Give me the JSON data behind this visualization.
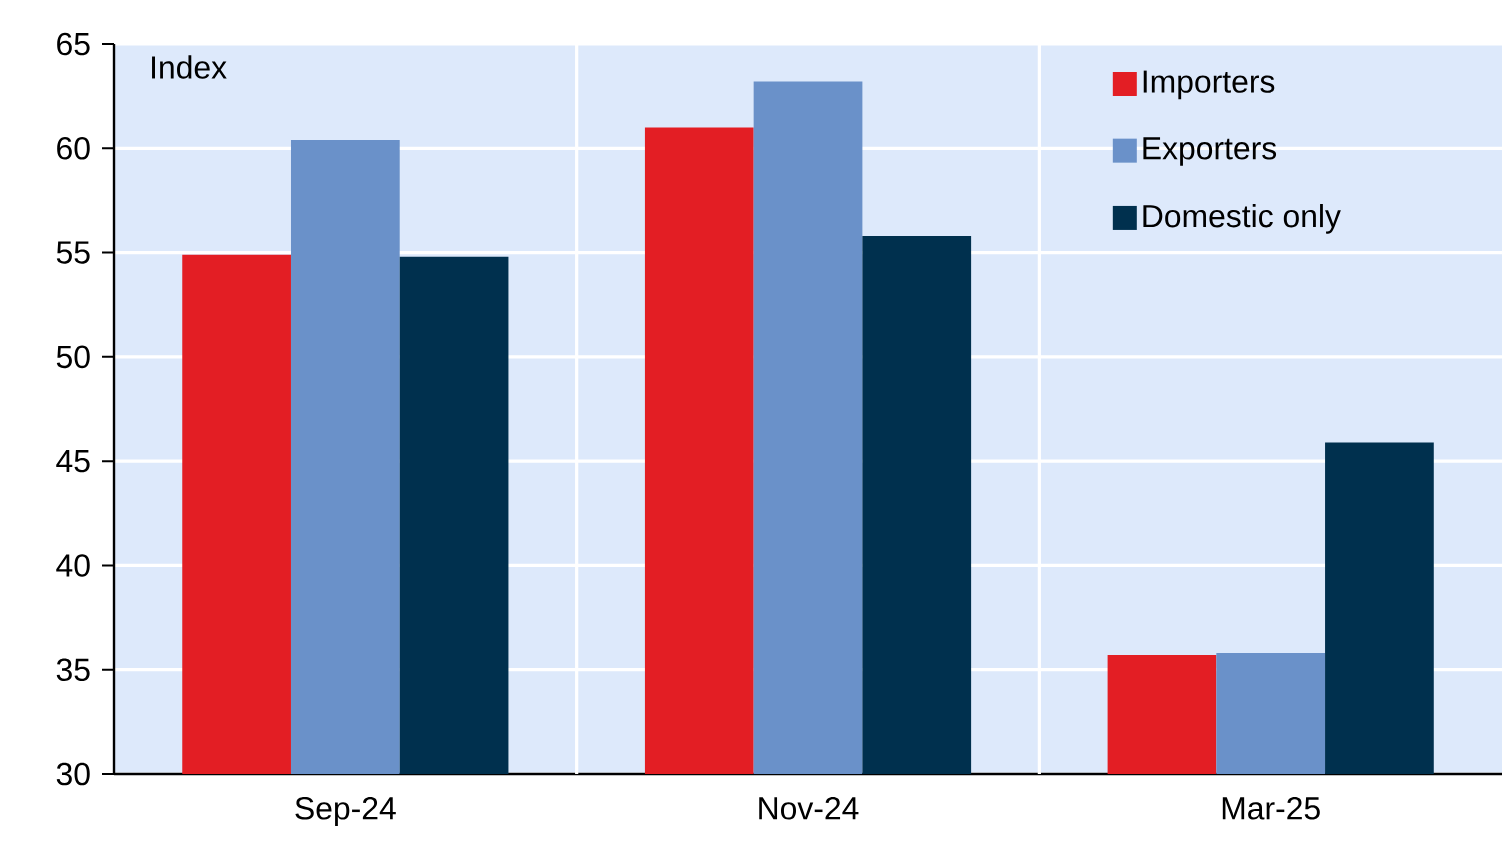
{
  "chart_data": {
    "type": "bar",
    "ylabel": "Index",
    "categories": [
      "Sep-24",
      "Nov-24",
      "Mar-25"
    ],
    "series": [
      {
        "name": "Importers",
        "color": "#e31e24",
        "values": [
          54.9,
          61.0,
          35.7
        ]
      },
      {
        "name": "Exporters",
        "color": "#6a91c9",
        "values": [
          60.4,
          63.2,
          35.8
        ]
      },
      {
        "name": "Domestic only",
        "color": "#00304e",
        "values": [
          54.8,
          55.8,
          45.9
        ]
      }
    ],
    "ylim": [
      30,
      65
    ],
    "yticks": [
      30,
      35,
      40,
      45,
      50,
      55,
      60,
      65
    ],
    "grid": true,
    "legend": "top right"
  }
}
